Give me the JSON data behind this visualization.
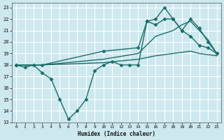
{
  "xlabel": "Humidex (Indice chaleur)",
  "xlim": [
    -0.5,
    23.5
  ],
  "ylim": [
    13,
    23.4
  ],
  "yticks": [
    13,
    14,
    15,
    16,
    17,
    18,
    19,
    20,
    21,
    22,
    23
  ],
  "xticks": [
    0,
    1,
    2,
    3,
    4,
    5,
    6,
    7,
    8,
    9,
    10,
    11,
    12,
    13,
    14,
    15,
    16,
    17,
    18,
    19,
    20,
    21,
    22,
    23
  ],
  "bg_color": "#cde8ef",
  "grid_color": "#ffffff",
  "line_color": "#1a6e6a",
  "lines": [
    {
      "x": [
        0,
        1,
        2,
        3,
        4,
        5,
        6,
        7,
        8,
        9,
        10,
        11,
        12,
        13,
        14,
        15,
        16,
        17,
        18,
        19,
        20,
        21,
        22,
        23
      ],
      "y": [
        18,
        17.8,
        18,
        17.3,
        16.8,
        15.0,
        13.3,
        14.0,
        15.0,
        17.5,
        18.0,
        18.3,
        18.0,
        18.0,
        18.0,
        21.8,
        21.5,
        22.0,
        22.0,
        21.0,
        20.5,
        19.7,
        19.5,
        19.0
      ],
      "marker": "D",
      "markersize": 2.5,
      "linewidth": 1.0,
      "linestyle": "-"
    },
    {
      "x": [
        0,
        3,
        10,
        14,
        15,
        16,
        17,
        18,
        19,
        20,
        21,
        22,
        23
      ],
      "y": [
        18,
        18,
        19.2,
        19.5,
        21.8,
        22.0,
        23.0,
        22.0,
        21.0,
        22.0,
        21.2,
        20.0,
        19.0
      ],
      "marker": "D",
      "markersize": 2.5,
      "linewidth": 1.0,
      "linestyle": "-"
    },
    {
      "x": [
        0,
        3,
        10,
        14,
        16,
        18,
        19,
        20,
        21,
        22,
        23
      ],
      "y": [
        18,
        18,
        18.5,
        19.0,
        20.5,
        21.0,
        21.5,
        21.8,
        21.0,
        20.2,
        19.0
      ],
      "marker": null,
      "markersize": 0,
      "linewidth": 1.0,
      "linestyle": "-"
    },
    {
      "x": [
        0,
        3,
        10,
        14,
        16,
        18,
        19,
        20,
        21,
        22,
        23
      ],
      "y": [
        18,
        18,
        18.2,
        18.5,
        18.8,
        19.0,
        19.1,
        19.2,
        19.0,
        18.9,
        18.8
      ],
      "marker": null,
      "markersize": 0,
      "linewidth": 1.0,
      "linestyle": "-"
    }
  ]
}
